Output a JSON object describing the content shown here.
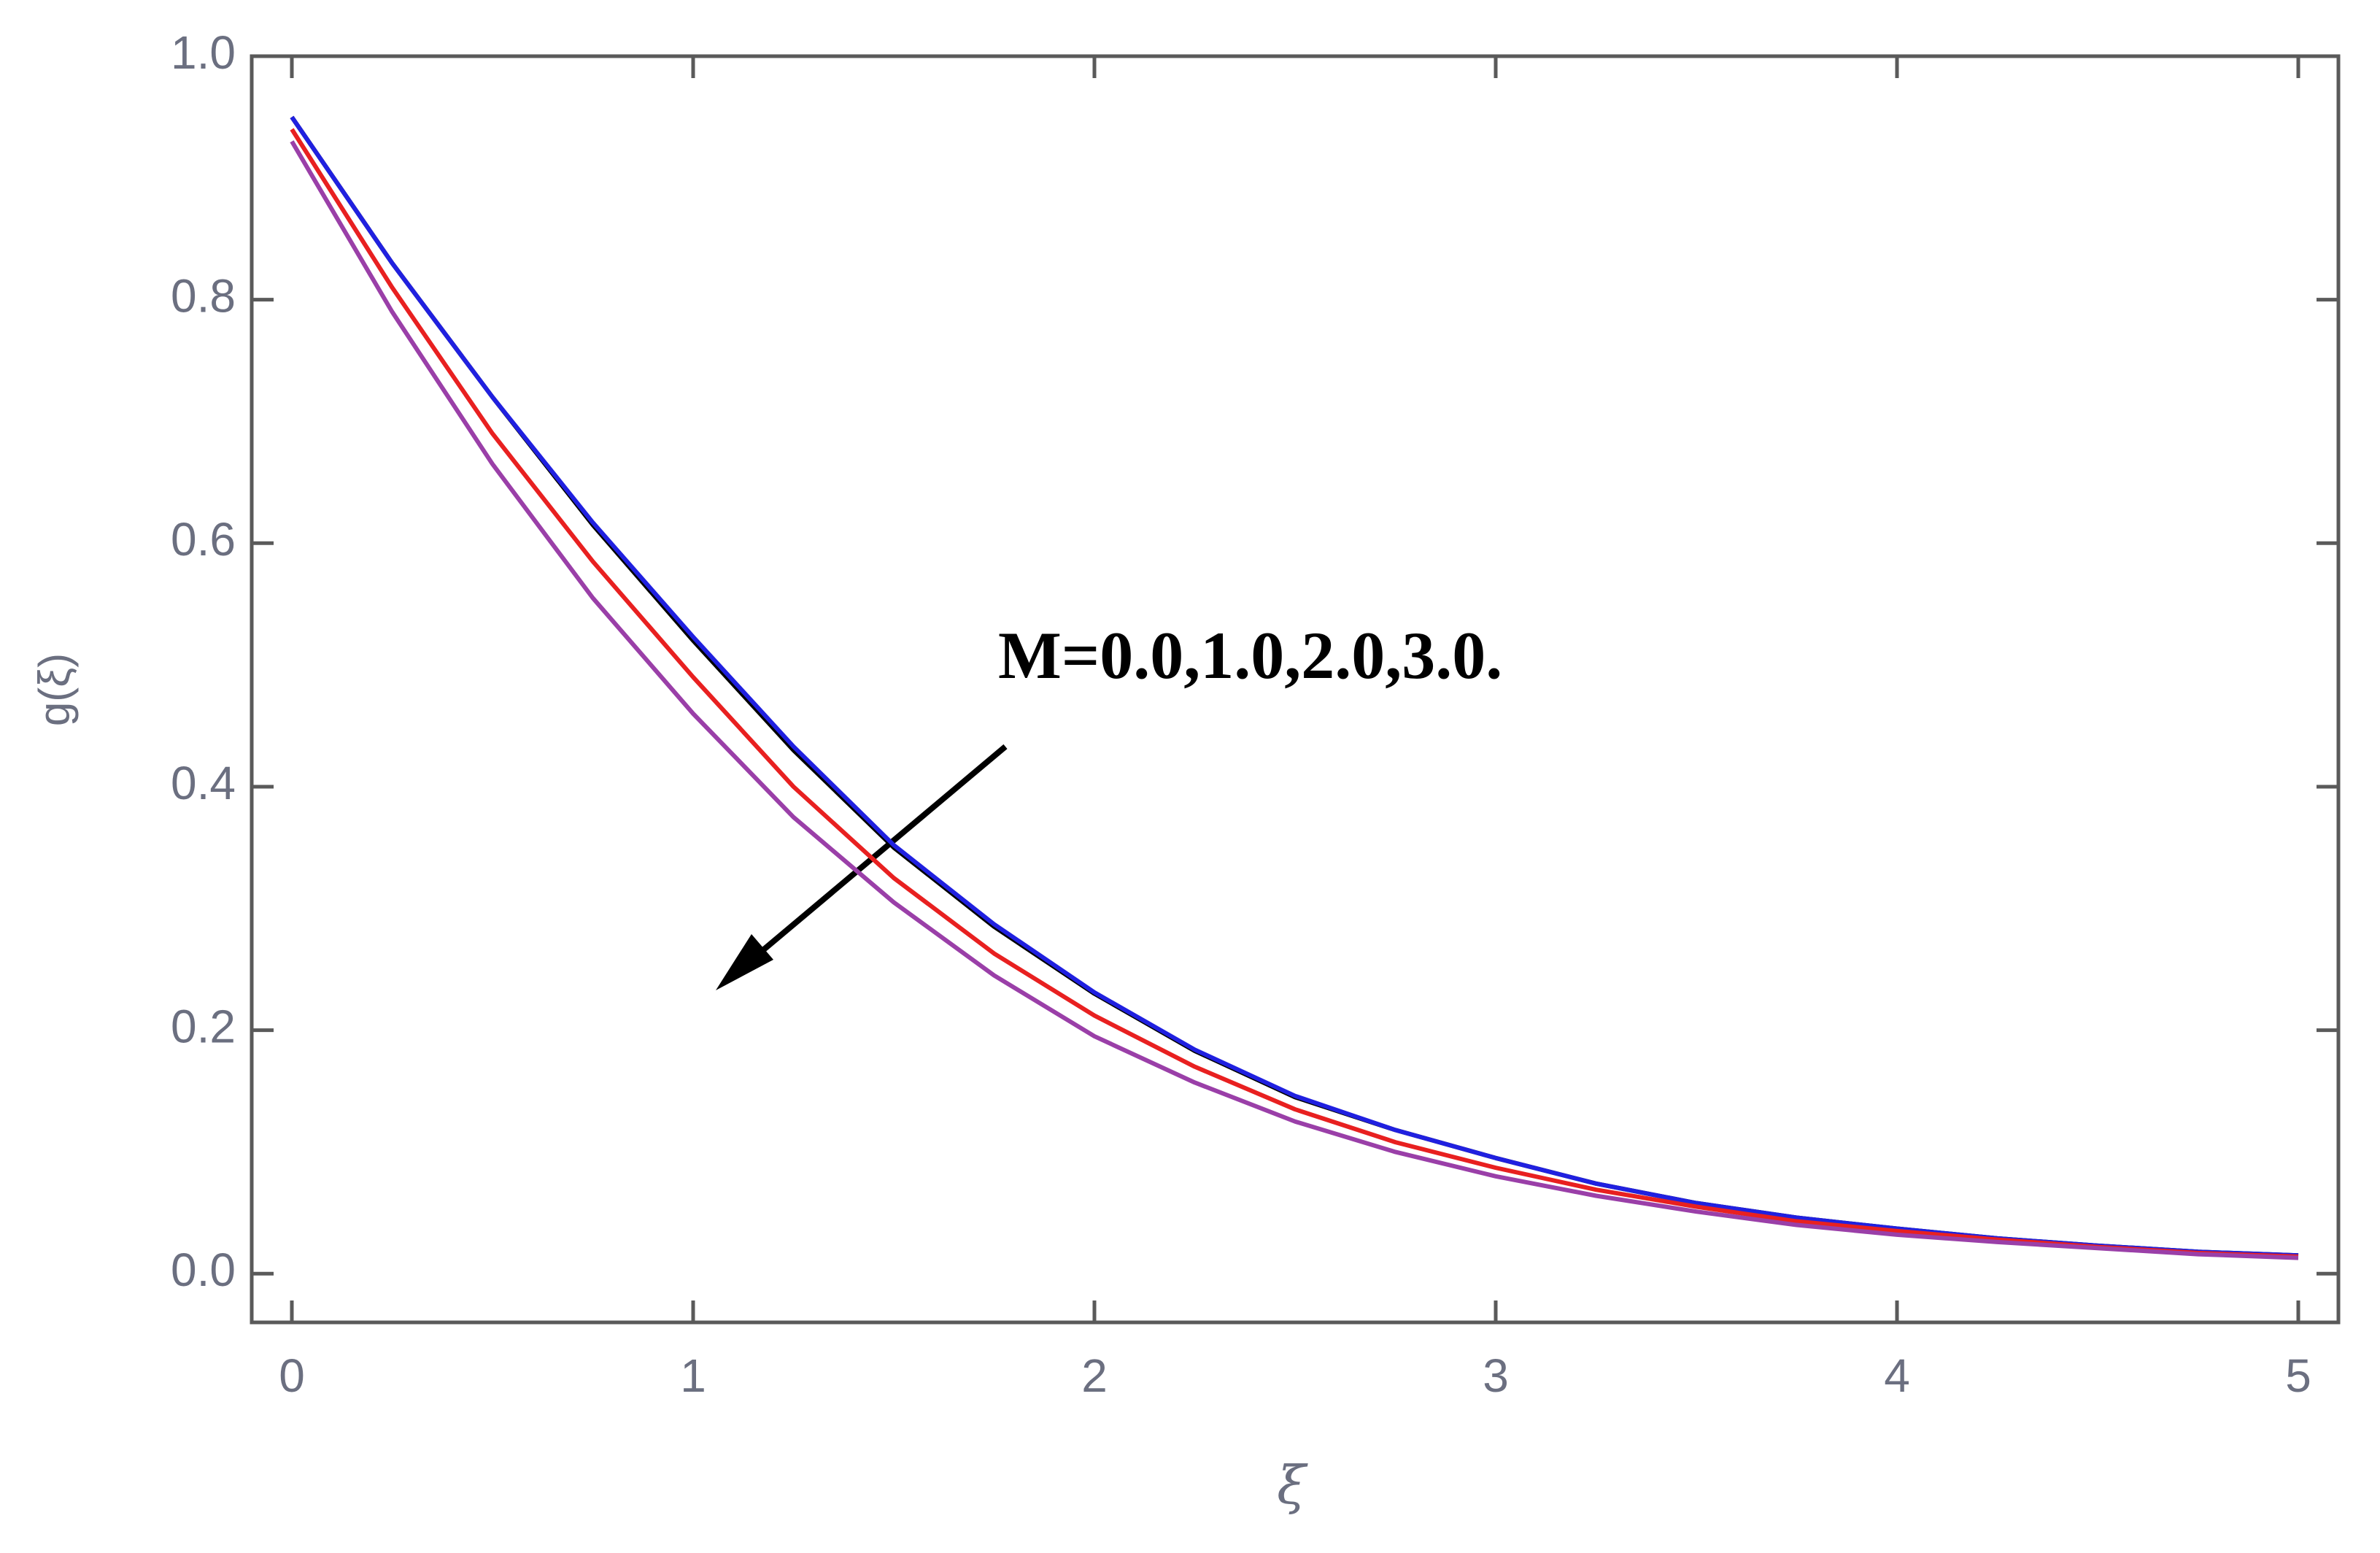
{
  "chart_data": {
    "type": "line",
    "x": [
      0,
      0.25,
      0.5,
      0.75,
      1,
      1.25,
      1.5,
      1.75,
      2,
      2.25,
      2.5,
      2.75,
      3,
      3.25,
      3.5,
      3.75,
      4,
      4.25,
      4.5,
      4.75,
      5
    ],
    "series": [
      {
        "color": "#000000",
        "values": [
          0.95,
          0.83,
          0.72,
          0.615,
          0.52,
          0.43,
          0.35,
          0.285,
          0.23,
          0.183,
          0.145,
          0.118,
          0.095,
          0.074,
          0.058,
          0.046,
          0.037,
          0.029,
          0.023,
          0.018,
          0.015
        ]
      },
      {
        "color": "#2020e0",
        "values": [
          0.95,
          0.83,
          0.72,
          0.617,
          0.523,
          0.433,
          0.352,
          0.287,
          0.231,
          0.184,
          0.146,
          0.118,
          0.095,
          0.074,
          0.058,
          0.046,
          0.037,
          0.029,
          0.023,
          0.018,
          0.015
        ]
      },
      {
        "color": "#e82020",
        "values": [
          0.94,
          0.81,
          0.69,
          0.585,
          0.49,
          0.4,
          0.325,
          0.263,
          0.212,
          0.17,
          0.135,
          0.108,
          0.087,
          0.069,
          0.055,
          0.043,
          0.035,
          0.028,
          0.022,
          0.017,
          0.014
        ]
      },
      {
        "color": "#9a3fa8",
        "values": [
          0.93,
          0.79,
          0.665,
          0.555,
          0.46,
          0.375,
          0.305,
          0.245,
          0.195,
          0.157,
          0.125,
          0.1,
          0.08,
          0.064,
          0.051,
          0.04,
          0.032,
          0.026,
          0.021,
          0.016,
          0.013
        ]
      }
    ],
    "xlim": [
      -0.1,
      5.1
    ],
    "ylim": [
      -0.04,
      1.0
    ],
    "xticks": [
      0,
      1,
      2,
      3,
      4,
      5
    ],
    "yticks": [
      {
        "value": 0,
        "label": "0.0"
      },
      0.2,
      0.4,
      0.6,
      0.8,
      {
        "value": 1,
        "label": "1.0"
      }
    ],
    "xlabel": "ξ",
    "ylabel": "g(ξ)",
    "annotation": "M=0.0,1.0,2.0,3.0."
  }
}
